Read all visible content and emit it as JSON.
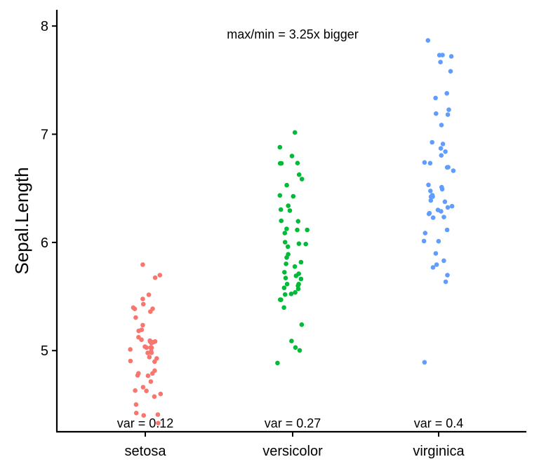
{
  "chart_data": {
    "type": "scatter",
    "subtype": "jitter-strip",
    "title": "",
    "xlabel": "",
    "ylabel": "Sepal.Length",
    "categories": [
      "setosa",
      "versicolor",
      "virginica"
    ],
    "ylim": [
      4.25,
      8.15
    ],
    "yticks": [
      "5",
      "6",
      "7",
      "8"
    ],
    "grid": false,
    "legend": "none",
    "annotation": "max/min = 3.25x bigger",
    "variance_labels": [
      "var = 0.12",
      "var = 0.27",
      "var = 0.4"
    ],
    "colors": [
      "#F8766D",
      "#00BA38",
      "#619CFF"
    ],
    "series": [
      {
        "category": "setosa",
        "values": [
          5.1,
          4.9,
          4.7,
          4.6,
          5.0,
          5.4,
          4.6,
          5.0,
          4.4,
          4.9,
          5.4,
          4.8,
          4.8,
          4.3,
          5.8,
          5.7,
          5.4,
          5.1,
          5.7,
          5.1,
          5.4,
          5.1,
          4.6,
          5.1,
          4.8,
          5.0,
          5.0,
          5.2,
          5.2,
          4.7,
          4.8,
          5.4,
          5.2,
          5.5,
          4.9,
          5.0,
          5.5,
          4.9,
          4.4,
          5.1,
          5.0,
          4.5,
          4.4,
          5.0,
          5.1,
          4.8,
          5.1,
          4.6,
          5.3,
          5.0
        ]
      },
      {
        "category": "versicolor",
        "values": [
          7.0,
          6.4,
          6.9,
          5.5,
          6.5,
          5.7,
          6.3,
          4.9,
          6.6,
          5.2,
          5.0,
          5.9,
          6.0,
          6.1,
          5.6,
          6.7,
          5.6,
          5.8,
          6.2,
          5.6,
          5.9,
          6.1,
          6.3,
          6.1,
          6.4,
          6.6,
          6.8,
          6.7,
          6.0,
          5.7,
          5.5,
          5.5,
          5.8,
          6.0,
          5.4,
          6.0,
          6.7,
          6.3,
          5.6,
          5.5,
          5.5,
          6.1,
          5.8,
          5.0,
          5.6,
          5.7,
          5.7,
          6.2,
          5.1,
          5.7
        ]
      },
      {
        "category": "virginica",
        "values": [
          6.3,
          5.8,
          7.1,
          6.3,
          6.5,
          7.6,
          4.9,
          7.3,
          6.7,
          7.2,
          6.5,
          6.4,
          6.8,
          5.7,
          5.8,
          6.4,
          6.5,
          7.7,
          7.7,
          6.0,
          6.9,
          5.6,
          7.7,
          6.3,
          6.7,
          7.2,
          6.2,
          6.1,
          6.4,
          7.2,
          7.4,
          7.9,
          6.4,
          6.3,
          6.1,
          7.7,
          6.3,
          6.4,
          6.0,
          6.9,
          6.7,
          6.9,
          5.8,
          6.8,
          6.7,
          6.7,
          6.3,
          6.5,
          6.2,
          5.9
        ]
      }
    ]
  }
}
